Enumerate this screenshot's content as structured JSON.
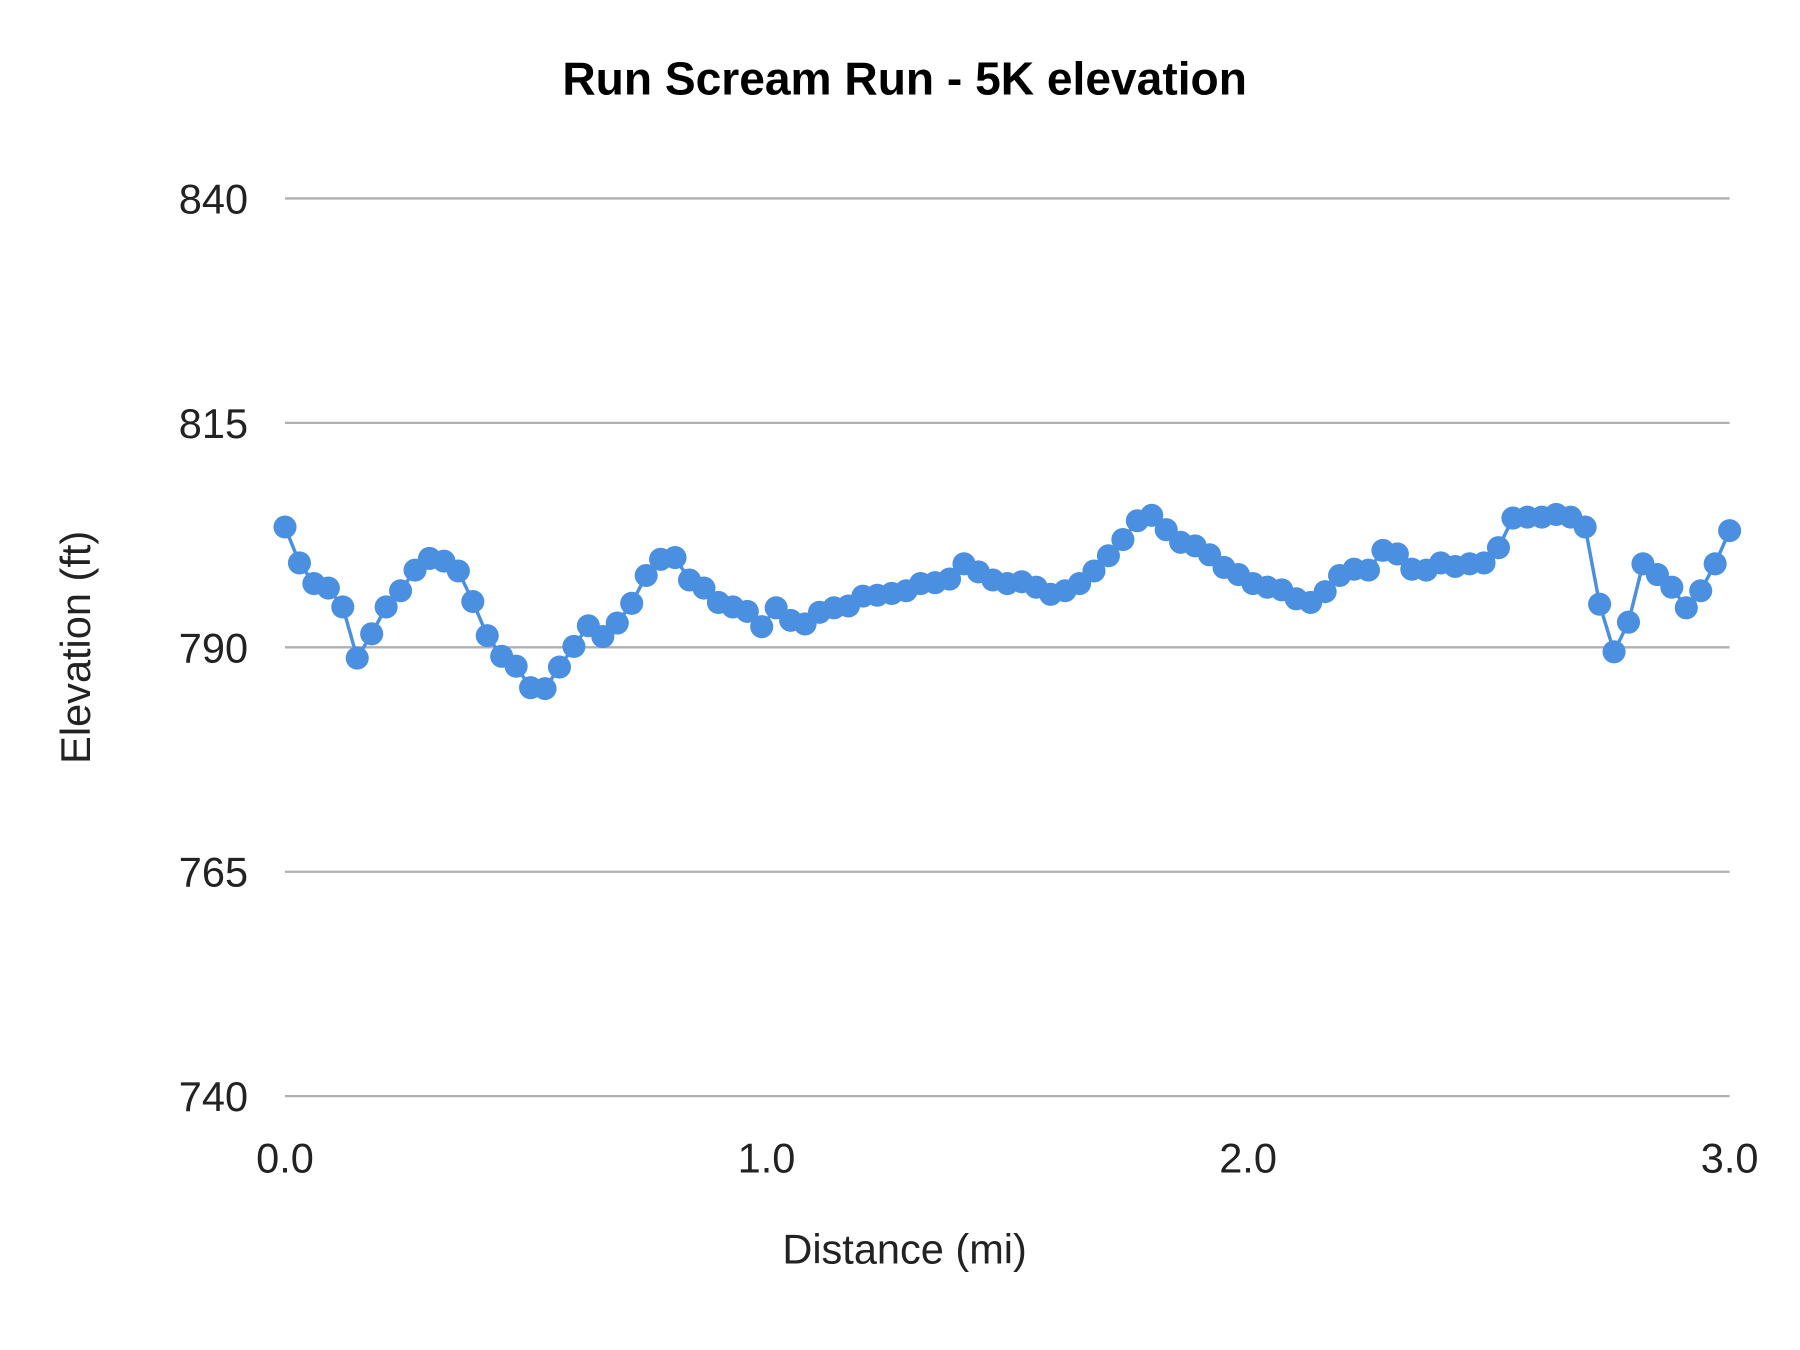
{
  "chart_data": {
    "type": "line",
    "title": "Run Scream Run - 5K elevation",
    "xlabel": "Distance (mi)",
    "ylabel": "Elevation (ft)",
    "xlim": [
      0,
      3.0
    ],
    "ylim": [
      740,
      840
    ],
    "x_ticks": [
      "0.0",
      "1.0",
      "2.0",
      "3.0"
    ],
    "y_ticks": [
      "740",
      "765",
      "790",
      "815",
      "840"
    ],
    "grid": "horizontal",
    "legend": "none",
    "markers": true,
    "color": "#4a8fe0",
    "series": [
      {
        "x": [
          0,
          0.03,
          0.06,
          0.09,
          0.12,
          0.15,
          0.18,
          0.21,
          0.24,
          0.27,
          0.3,
          0.33,
          0.36,
          0.39,
          0.42,
          0.45,
          0.48,
          0.51,
          0.54,
          0.57,
          0.6,
          0.63,
          0.66,
          0.69,
          0.72,
          0.75,
          0.78,
          0.81,
          0.84,
          0.87,
          0.9,
          0.93,
          0.96,
          0.99,
          1.02,
          1.05,
          1.08,
          1.11,
          1.14,
          1.17,
          1.2,
          1.23,
          1.26,
          1.29,
          1.32,
          1.35,
          1.38,
          1.41,
          1.44,
          1.47,
          1.5,
          1.53,
          1.56,
          1.59,
          1.62,
          1.65,
          1.68,
          1.71,
          1.74,
          1.77,
          1.8,
          1.83,
          1.86,
          1.89,
          1.92,
          1.95,
          1.98,
          2.01,
          2.04,
          2.07,
          2.1,
          2.13,
          2.16,
          2.19,
          2.22,
          2.25,
          2.28,
          2.31,
          2.34,
          2.37,
          2.4,
          2.43,
          2.46,
          2.49,
          2.52,
          2.55,
          2.58,
          2.61,
          2.64,
          2.67,
          2.7,
          2.73,
          2.76,
          2.79,
          2.82,
          2.85,
          2.88,
          2.91,
          2.94,
          2.97,
          3.0
        ],
        "y": [
          803.4,
          799.4,
          797.1,
          796.6,
          794.5,
          788.8,
          791.5,
          794.5,
          796.3,
          798.6,
          799.9,
          799.6,
          798.5,
          795.1,
          791.3,
          789.0,
          787.9,
          785.5,
          785.4,
          787.8,
          790.1,
          792.4,
          791.2,
          792.7,
          794.9,
          798.0,
          799.8,
          800.0,
          797.5,
          796.6,
          795.0,
          794.5,
          794.0,
          792.3,
          794.4,
          793.0,
          792.6,
          793.9,
          794.4,
          794.6,
          795.7,
          795.8,
          796.0,
          796.3,
          797.1,
          797.2,
          797.6,
          799.3,
          798.4,
          797.5,
          797.1,
          797.3,
          796.7,
          795.9,
          796.3,
          797.1,
          798.5,
          800.2,
          802.0,
          804.1,
          804.7,
          803.1,
          801.7,
          801.3,
          800.3,
          798.9,
          798.1,
          797.1,
          796.7,
          796.4,
          795.4,
          795.0,
          796.2,
          798.0,
          798.7,
          798.6,
          800.8,
          800.4,
          798.7,
          798.6,
          799.4,
          799.0,
          799.3,
          799.4,
          801.1,
          804.4,
          804.5,
          804.5,
          804.8,
          804.5,
          803.4,
          794.8,
          789.5,
          792.8,
          799.3,
          798.1,
          796.7,
          794.4,
          796.3,
          799.3,
          803.0
        ]
      }
    ]
  }
}
